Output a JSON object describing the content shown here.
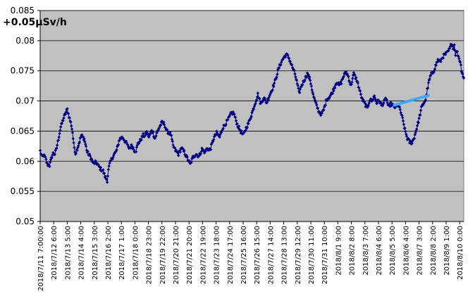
{
  "chart_data": {
    "type": "line",
    "title": "",
    "xlabel": "",
    "ylabel": "",
    "annotation": "+0.05μSv/h",
    "ylim": [
      0.05,
      0.085
    ],
    "yticks": [
      0.05,
      0.055,
      0.06,
      0.065,
      0.07,
      0.075,
      0.08,
      0.085
    ],
    "yticks_text": [
      "0.05",
      "0.055",
      "0.06",
      "0.065",
      "0.07",
      "0.075",
      "0.08",
      "0.085"
    ],
    "grid": true,
    "legend": "none",
    "plot_background": "#c0c0c0",
    "x_tick_labels": [
      "2018/7/11  7:00:00",
      "2018/7/12 6:00",
      "2018/7/13 5:00",
      "2018/7/14 4:00",
      "2018/7/15 3:00",
      "2018/7/16 2:00",
      "2018/7/17 1:00",
      "2018/7/18 0:00",
      "2018/7/18 23:00",
      "2018/7/19 22:00",
      "2018/7/20 21:00",
      "2018/7/21 20:00",
      "2018/7/22 19:00",
      "2018/7/23 18:00",
      "2018/7/24 17:00",
      "2018/7/25 16:00",
      "2018/7/26 15:00",
      "2018/7/27 14:00",
      "2018/7/28 13:00",
      "2018/7/29 12:00",
      "2018/7/30 11:00",
      "2018/7/31 10:00",
      "2018/8/1 9:00",
      "2018/8/2 8:00",
      "2018/8/3 7:00",
      "2018/8/4 6:00",
      "2018/8/5 5:00",
      "2018/8/6 4:00",
      "2018/8/7 3:00",
      "2018/8/8 2:00",
      "2018/8/9 1:00",
      "2018/8/10 0:00"
    ],
    "x_tick_hours": [
      0,
      23,
      46,
      69,
      92,
      115,
      138,
      161,
      184,
      207,
      230,
      253,
      276,
      299,
      322,
      345,
      368,
      391,
      414,
      437,
      460,
      483,
      506,
      529,
      552,
      575,
      598,
      621,
      644,
      667,
      690,
      713
    ],
    "x_range_hours": [
      0,
      720
    ],
    "series": [
      {
        "color": "#000080",
        "marker": "diamond",
        "x_unit": "hours since 2018/7/11 7:00",
        "knots_x": [
          0,
          3,
          6,
          9,
          12,
          16,
          20,
          22,
          25,
          28,
          31,
          35,
          40,
          46,
          50,
          53,
          55,
          57,
          60,
          62,
          65,
          70,
          75,
          80,
          85,
          90,
          95,
          100,
          103,
          107,
          110,
          114,
          116,
          118,
          122,
          130,
          135,
          140,
          145,
          148,
          150,
          153,
          156,
          160,
          163,
          166,
          170,
          175,
          178,
          181,
          185,
          190,
          195,
          200,
          205,
          207,
          211,
          215,
          222,
          226,
          230,
          235,
          240,
          245,
          250,
          255,
          260,
          265,
          270,
          275,
          280,
          284,
          287,
          290,
          295,
          300,
          305,
          310,
          315,
          320,
          325,
          329,
          335,
          340,
          345,
          350,
          355,
          360,
          365,
          370,
          375,
          380,
          385,
          390,
          395,
          400,
          405,
          410,
          414,
          418,
          422,
          428,
          433,
          437,
          440,
          444,
          448,
          454,
          459,
          464,
          469,
          474,
          478,
          482,
          487,
          492,
          496,
          500,
          504,
          508,
          512,
          516,
          520,
          524,
          528,
          533,
          538,
          543,
          547,
          552,
          556,
          560,
          564,
          568,
          572,
          576,
          580,
          584,
          588,
          592,
          596,
          600,
          604,
          608,
          612,
          616,
          620,
          624,
          628,
          632,
          636,
          640,
          644,
          648,
          652,
          655,
          658,
          661,
          664,
          668,
          672,
          676,
          680,
          684,
          688,
          692,
          696,
          698,
          700,
          702,
          704,
          706,
          708,
          711,
          714,
          716,
          718,
          720
        ],
        "knots_y": [
          0.0617,
          0.0607,
          0.061,
          0.0605,
          0.0595,
          0.0593,
          0.0608,
          0.0613,
          0.0612,
          0.0622,
          0.0637,
          0.0657,
          0.0672,
          0.0686,
          0.0671,
          0.066,
          0.0648,
          0.0628,
          0.0613,
          0.0618,
          0.0627,
          0.0643,
          0.0637,
          0.0615,
          0.0608,
          0.0597,
          0.0598,
          0.0591,
          0.0587,
          0.0584,
          0.0575,
          0.0568,
          0.0585,
          0.0595,
          0.0605,
          0.0618,
          0.0637,
          0.064,
          0.0632,
          0.0628,
          0.0622,
          0.0623,
          0.0626,
          0.0618,
          0.0618,
          0.0629,
          0.0634,
          0.0643,
          0.0642,
          0.0648,
          0.064,
          0.0652,
          0.0638,
          0.0651,
          0.0661,
          0.0664,
          0.0662,
          0.065,
          0.0645,
          0.0625,
          0.0618,
          0.0612,
          0.0622,
          0.0615,
          0.0605,
          0.0595,
          0.0607,
          0.0612,
          0.0608,
          0.062,
          0.0615,
          0.0622,
          0.0618,
          0.0622,
          0.0638,
          0.0647,
          0.064,
          0.0655,
          0.0662,
          0.067,
          0.068,
          0.068,
          0.0661,
          0.0651,
          0.0643,
          0.0655,
          0.0665,
          0.068,
          0.0695,
          0.0711,
          0.0695,
          0.0706,
          0.0697,
          0.071,
          0.0721,
          0.0735,
          0.0753,
          0.0765,
          0.0772,
          0.0777,
          0.0773,
          0.0758,
          0.0745,
          0.0728,
          0.0713,
          0.0725,
          0.0733,
          0.0745,
          0.0735,
          0.071,
          0.0694,
          0.0682,
          0.0678,
          0.0685,
          0.0703,
          0.0707,
          0.0713,
          0.0722,
          0.0732,
          0.0726,
          0.0731,
          0.0742,
          0.0748,
          0.074,
          0.0725,
          0.0745,
          0.0735,
          0.0718,
          0.0703,
          0.0695,
          0.0688,
          0.0702,
          0.07,
          0.0708,
          0.0697,
          0.0701,
          0.0693,
          0.0697,
          0.0705,
          0.069,
          0.0695,
          0.0692,
          0.0689,
          0.0694,
          0.0685,
          0.067,
          0.0652,
          0.0638,
          0.0632,
          0.0631,
          0.064,
          0.0655,
          0.067,
          0.0688,
          0.0697,
          0.0702,
          0.0718,
          0.0733,
          0.0743,
          0.0748,
          0.0758,
          0.0768,
          0.0765,
          0.0773,
          0.0777,
          0.078,
          0.0786,
          0.0792,
          0.0796,
          0.0786,
          0.0793,
          0.0778,
          0.0783,
          0.0774,
          0.0765,
          0.0752,
          0.0745,
          0.0738
        ],
        "noise": 0.0006
      },
      {
        "color": "#3fa9f5",
        "marker": "none",
        "style": "thick-line",
        "x": [
          602,
          660
        ],
        "y": [
          0.0693,
          0.0709
        ]
      }
    ]
  }
}
